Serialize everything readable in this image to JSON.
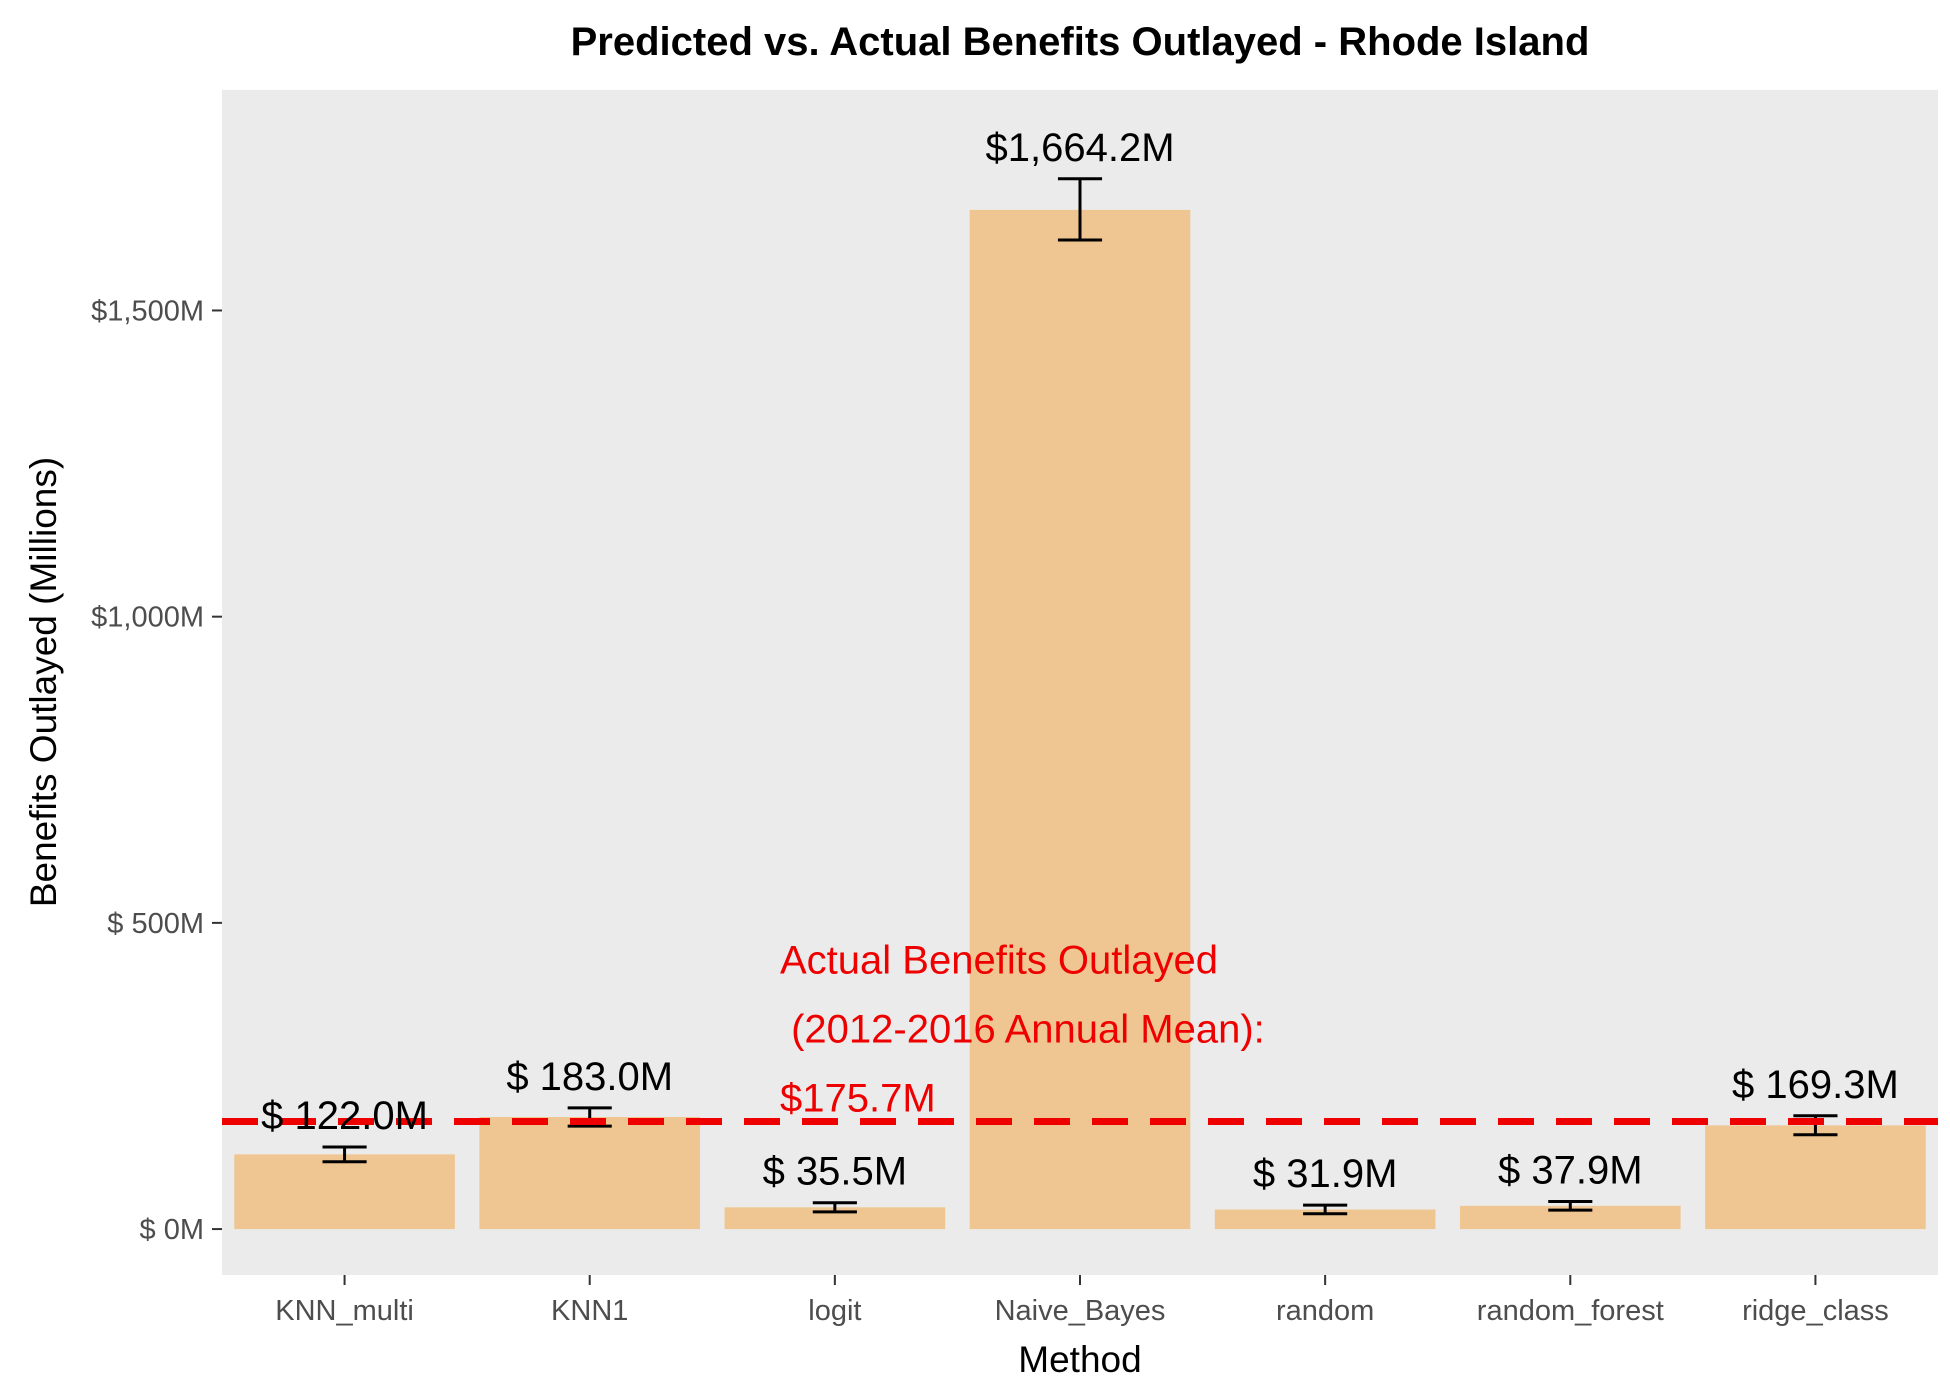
{
  "chart_data": {
    "type": "bar",
    "title": "Predicted vs. Actual Benefits Outlayed - Rhode Island",
    "xlabel": "Method",
    "ylabel": "Benefits Outlayed (Millions)",
    "categories": [
      "KNN_multi",
      "KNN1",
      "logit",
      "Naive_Bayes",
      "random",
      "random_forest",
      "ridge_class"
    ],
    "values": [
      122.0,
      183.0,
      35.5,
      1664.2,
      31.9,
      37.9,
      169.3
    ],
    "value_labels": [
      "$ 122.0M",
      "$ 183.0M",
      "$ 35.5M",
      "$1,664.2M",
      "$ 31.9M",
      "$ 37.9M",
      "$ 169.3M"
    ],
    "error_low": [
      110,
      168,
      28,
      1615,
      25,
      31,
      154
    ],
    "error_high": [
      134,
      198,
      43,
      1715,
      39,
      45,
      185
    ],
    "ylim": [
      -75,
      1860
    ],
    "yticks": [
      0,
      500,
      1000,
      1500
    ],
    "ytick_labels": [
      "$ 0M",
      "$ 500M",
      "$1,000M",
      "$1,500M"
    ],
    "reference_line": {
      "value": 175.7,
      "label_lines": [
        "Actual Benefits Outlayed",
        " (2012-2016 Annual Mean):",
        "$175.7M"
      ],
      "color": "#ee0000",
      "style": "dashed"
    },
    "bar_color": "#efc691",
    "panel_background": "#ebebeb",
    "grid": false,
    "legend": "none"
  }
}
